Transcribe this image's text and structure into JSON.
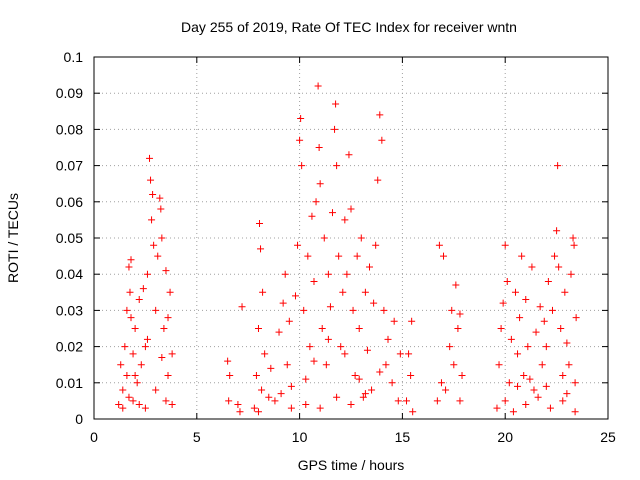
{
  "chart_data": {
    "type": "scatter",
    "title": "Day 255 of 2019, Rate Of TEC Index for receiver wntn",
    "xlabel": "GPS time / hours",
    "ylabel": "ROTI / TECUs",
    "xlim": [
      0,
      25
    ],
    "ylim": [
      0,
      0.1
    ],
    "x_ticks": [
      0,
      5,
      10,
      15,
      20,
      25
    ],
    "x_tick_labels": [
      "0",
      "5",
      "10",
      "15",
      "20",
      "25"
    ],
    "y_ticks": [
      0,
      0.01,
      0.02,
      0.03,
      0.04,
      0.05,
      0.06,
      0.07,
      0.08,
      0.09,
      0.1
    ],
    "y_tick_labels": [
      "0",
      "0.01",
      "0.02",
      "0.03",
      "0.04",
      "0.05",
      "0.06",
      "0.07",
      "0.08",
      "0.09",
      "0.1"
    ],
    "grid": true,
    "marker": "plus",
    "color": "#ff0000",
    "series": [
      {
        "points": [
          [
            1.2,
            0.004
          ],
          [
            1.3,
            0.015
          ],
          [
            1.4,
            0.008
          ],
          [
            1.5,
            0.02
          ],
          [
            1.6,
            0.012
          ],
          [
            1.7,
            0.006
          ],
          [
            1.8,
            0.028
          ],
          [
            1.9,
            0.018
          ],
          [
            1.6,
            0.03
          ],
          [
            1.7,
            0.042
          ],
          [
            1.8,
            0.044
          ],
          [
            1.75,
            0.035
          ],
          [
            1.9,
            0.005
          ],
          [
            2.0,
            0.025
          ],
          [
            2.1,
            0.01
          ],
          [
            2.2,
            0.033
          ],
          [
            2.3,
            0.015
          ],
          [
            2.4,
            0.036
          ],
          [
            2.5,
            0.02
          ],
          [
            2.6,
            0.04
          ],
          [
            2.7,
            0.072
          ],
          [
            2.75,
            0.066
          ],
          [
            2.8,
            0.055
          ],
          [
            2.85,
            0.062
          ],
          [
            2.9,
            0.048
          ],
          [
            3.0,
            0.03
          ],
          [
            3.1,
            0.045
          ],
          [
            3.2,
            0.061
          ],
          [
            3.25,
            0.058
          ],
          [
            3.3,
            0.05
          ],
          [
            3.4,
            0.025
          ],
          [
            3.5,
            0.041
          ],
          [
            3.6,
            0.012
          ],
          [
            3.7,
            0.035
          ],
          [
            3.8,
            0.004
          ],
          [
            3.8,
            0.018
          ],
          [
            2.2,
            0.004
          ],
          [
            2.5,
            0.003
          ],
          [
            3.0,
            0.008
          ],
          [
            3.5,
            0.005
          ],
          [
            2.0,
            0.012
          ],
          [
            2.6,
            0.022
          ],
          [
            3.3,
            0.017
          ],
          [
            1.4,
            0.003
          ],
          [
            3.6,
            0.028
          ],
          [
            6.5,
            0.016
          ],
          [
            6.55,
            0.005
          ],
          [
            6.6,
            0.012
          ],
          [
            7.0,
            0.004
          ],
          [
            7.1,
            0.002
          ],
          [
            7.2,
            0.031
          ],
          [
            7.8,
            0.003
          ],
          [
            7.9,
            0.012
          ],
          [
            8.0,
            0.025
          ],
          [
            8.05,
            0.054
          ],
          [
            8.1,
            0.047
          ],
          [
            8.2,
            0.035
          ],
          [
            8.3,
            0.018
          ],
          [
            8.5,
            0.006
          ],
          [
            8.0,
            0.002
          ],
          [
            8.15,
            0.008
          ],
          [
            8.6,
            0.014
          ],
          [
            8.8,
            0.005
          ],
          [
            9.0,
            0.024
          ],
          [
            9.2,
            0.032
          ],
          [
            9.3,
            0.04
          ],
          [
            9.4,
            0.015
          ],
          [
            9.5,
            0.027
          ],
          [
            9.6,
            0.009
          ],
          [
            9.8,
            0.034
          ],
          [
            9.9,
            0.048
          ],
          [
            10.0,
            0.077
          ],
          [
            10.05,
            0.083
          ],
          [
            10.1,
            0.07
          ],
          [
            10.2,
            0.03
          ],
          [
            10.3,
            0.011
          ],
          [
            10.4,
            0.045
          ],
          [
            10.5,
            0.02
          ],
          [
            10.6,
            0.056
          ],
          [
            10.7,
            0.038
          ],
          [
            10.8,
            0.06
          ],
          [
            10.9,
            0.092
          ],
          [
            10.95,
            0.075
          ],
          [
            11.0,
            0.065
          ],
          [
            11.1,
            0.025
          ],
          [
            11.2,
            0.05
          ],
          [
            11.3,
            0.015
          ],
          [
            11.4,
            0.04
          ],
          [
            11.5,
            0.031
          ],
          [
            11.6,
            0.057
          ],
          [
            11.7,
            0.08
          ],
          [
            11.75,
            0.087
          ],
          [
            11.8,
            0.07
          ],
          [
            11.9,
            0.045
          ],
          [
            12.0,
            0.02
          ],
          [
            12.1,
            0.035
          ],
          [
            12.2,
            0.055
          ],
          [
            12.3,
            0.04
          ],
          [
            12.4,
            0.073
          ],
          [
            12.5,
            0.058
          ],
          [
            12.6,
            0.03
          ],
          [
            12.7,
            0.012
          ],
          [
            12.8,
            0.045
          ],
          [
            12.9,
            0.025
          ],
          [
            13.0,
            0.05
          ],
          [
            13.1,
            0.006
          ],
          [
            13.2,
            0.035
          ],
          [
            13.3,
            0.019
          ],
          [
            13.4,
            0.042
          ],
          [
            13.5,
            0.008
          ],
          [
            13.6,
            0.032
          ],
          [
            13.7,
            0.048
          ],
          [
            13.8,
            0.066
          ],
          [
            13.9,
            0.084
          ],
          [
            14.0,
            0.077
          ],
          [
            14.1,
            0.03
          ],
          [
            14.2,
            0.015
          ],
          [
            14.3,
            0.022
          ],
          [
            14.5,
            0.01
          ],
          [
            14.6,
            0.027
          ],
          [
            14.8,
            0.005
          ],
          [
            14.9,
            0.018
          ],
          [
            10.3,
            0.004
          ],
          [
            11.0,
            0.003
          ],
          [
            11.8,
            0.006
          ],
          [
            12.5,
            0.004
          ],
          [
            13.2,
            0.007
          ],
          [
            9.6,
            0.003
          ],
          [
            10.7,
            0.016
          ],
          [
            12.2,
            0.018
          ],
          [
            11.4,
            0.022
          ],
          [
            12.9,
            0.011
          ],
          [
            13.9,
            0.013
          ],
          [
            9.1,
            0.007
          ],
          [
            15.2,
            0.005
          ],
          [
            15.3,
            0.018
          ],
          [
            15.4,
            0.012
          ],
          [
            15.45,
            0.027
          ],
          [
            15.5,
            0.002
          ],
          [
            16.7,
            0.005
          ],
          [
            16.8,
            0.048
          ],
          [
            16.9,
            0.01
          ],
          [
            17.0,
            0.045
          ],
          [
            17.1,
            0.008
          ],
          [
            17.3,
            0.02
          ],
          [
            17.4,
            0.03
          ],
          [
            17.5,
            0.015
          ],
          [
            17.6,
            0.037
          ],
          [
            17.7,
            0.025
          ],
          [
            17.8,
            0.005
          ],
          [
            17.9,
            0.012
          ],
          [
            17.8,
            0.029
          ],
          [
            19.6,
            0.003
          ],
          [
            19.7,
            0.015
          ],
          [
            19.8,
            0.025
          ],
          [
            19.9,
            0.032
          ],
          [
            20.0,
            0.048
          ],
          [
            20.1,
            0.038
          ],
          [
            20.2,
            0.01
          ],
          [
            20.3,
            0.022
          ],
          [
            20.5,
            0.035
          ],
          [
            20.6,
            0.018
          ],
          [
            20.7,
            0.028
          ],
          [
            20.8,
            0.045
          ],
          [
            20.9,
            0.012
          ],
          [
            21.0,
            0.033
          ],
          [
            21.1,
            0.02
          ],
          [
            21.3,
            0.042
          ],
          [
            21.4,
            0.008
          ],
          [
            21.5,
            0.024
          ],
          [
            21.7,
            0.031
          ],
          [
            21.8,
            0.015
          ],
          [
            21.9,
            0.027
          ],
          [
            22.0,
            0.02
          ],
          [
            22.1,
            0.038
          ],
          [
            22.3,
            0.03
          ],
          [
            22.4,
            0.045
          ],
          [
            22.5,
            0.052
          ],
          [
            22.55,
            0.07
          ],
          [
            22.6,
            0.042
          ],
          [
            22.7,
            0.025
          ],
          [
            22.8,
            0.012
          ],
          [
            22.9,
            0.035
          ],
          [
            23.0,
            0.021
          ],
          [
            23.1,
            0.015
          ],
          [
            23.2,
            0.04
          ],
          [
            23.3,
            0.05
          ],
          [
            23.35,
            0.048
          ],
          [
            23.4,
            0.01
          ],
          [
            23.45,
            0.028
          ],
          [
            20.0,
            0.005
          ],
          [
            20.4,
            0.002
          ],
          [
            21.0,
            0.004
          ],
          [
            21.6,
            0.006
          ],
          [
            22.2,
            0.003
          ],
          [
            22.8,
            0.005
          ],
          [
            23.4,
            0.002
          ],
          [
            20.6,
            0.009
          ],
          [
            21.2,
            0.011
          ],
          [
            22.0,
            0.009
          ],
          [
            23.0,
            0.007
          ]
        ]
      }
    ]
  }
}
